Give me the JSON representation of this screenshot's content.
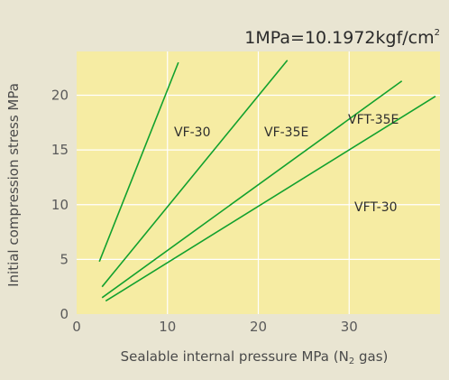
{
  "chart_data": {
    "type": "line",
    "title": "1MPa=10.1972kgf/cm",
    "title_superscript": "2",
    "xlabel": "Sealable internal pressure MPa (N",
    "xlabel_subscript": "2",
    "xlabel_suffix": " gas)",
    "ylabel": "Initial compression stress MPa",
    "xlim": [
      0,
      40
    ],
    "ylim": [
      0,
      24
    ],
    "x_ticks": [
      0,
      10,
      20,
      30
    ],
    "y_ticks": [
      0,
      5,
      10,
      15,
      20
    ],
    "grid": true,
    "legend": "none (series labeled directly on lines)",
    "series": [
      {
        "name": "VF-30",
        "x": [
          2.5,
          11.2
        ],
        "y": [
          4.8,
          23.0
        ]
      },
      {
        "name": "VF-35E",
        "x": [
          2.8,
          23.2
        ],
        "y": [
          2.5,
          23.2
        ]
      },
      {
        "name": "VFT-35E",
        "x": [
          2.8,
          35.8
        ],
        "y": [
          1.5,
          21.3
        ]
      },
      {
        "name": "VFT-30",
        "x": [
          3.2,
          39.5
        ],
        "y": [
          1.2,
          19.9
        ]
      }
    ]
  },
  "colors": {
    "figure_background": "#e9e5d2",
    "plot_background": "#f6eca3",
    "gridline": "#ffffff",
    "line": "#12a12e"
  }
}
